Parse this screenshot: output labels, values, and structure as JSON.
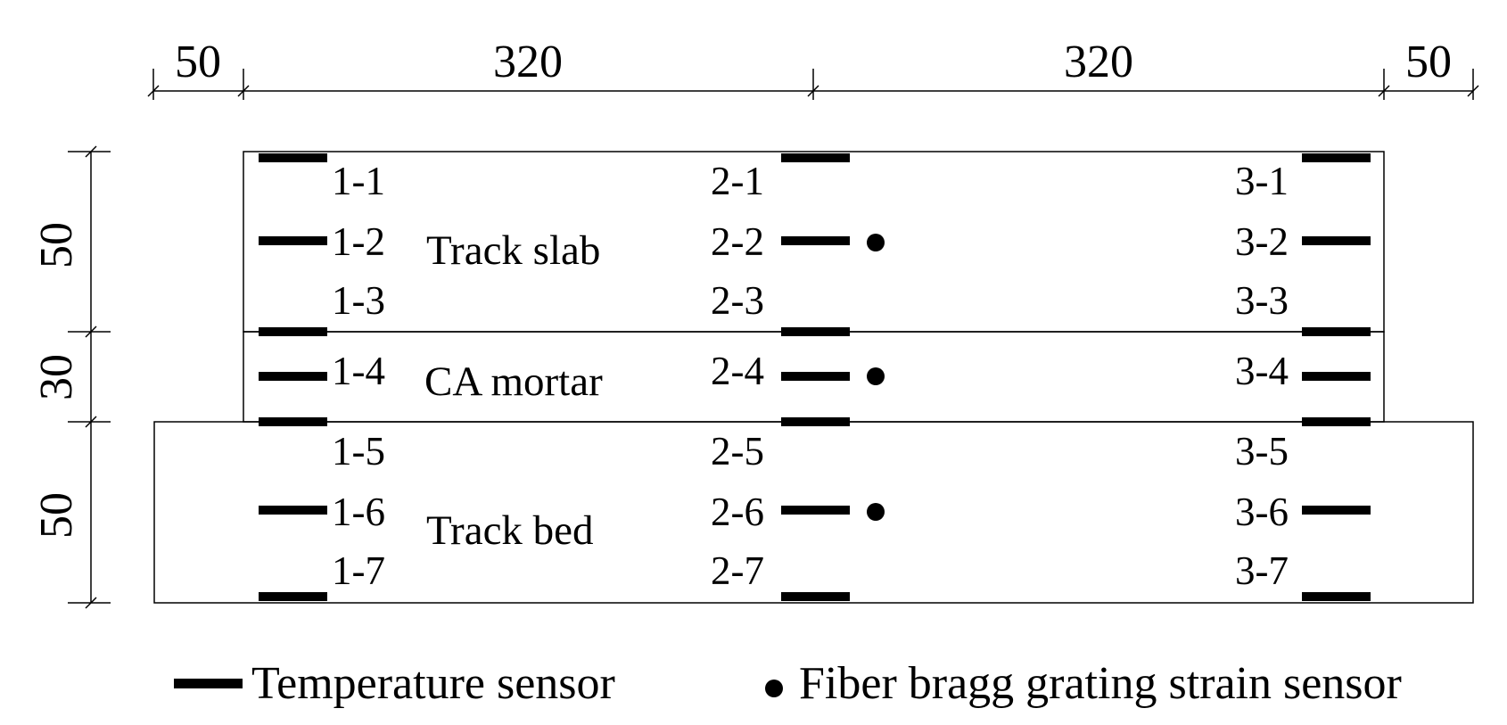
{
  "dimensions": {
    "top": [
      "50",
      "320",
      "320",
      "50"
    ],
    "left": [
      "50",
      "30",
      "50"
    ]
  },
  "layers": {
    "track_slab": "Track slab",
    "ca_mortar": "CA mortar",
    "track_bed": "Track bed"
  },
  "sensor_labels": {
    "col1": [
      "1-1",
      "1-2",
      "1-3",
      "1-4",
      "1-5",
      "1-6",
      "1-7"
    ],
    "col2": [
      "2-1",
      "2-2",
      "2-3",
      "2-4",
      "2-5",
      "2-6",
      "2-7"
    ],
    "col3": [
      "3-1",
      "3-2",
      "3-3",
      "3-4",
      "3-5",
      "3-6",
      "3-7"
    ]
  },
  "legend": {
    "temperature": "Temperature sensor",
    "strain": "Fiber bragg grating strain sensor"
  }
}
